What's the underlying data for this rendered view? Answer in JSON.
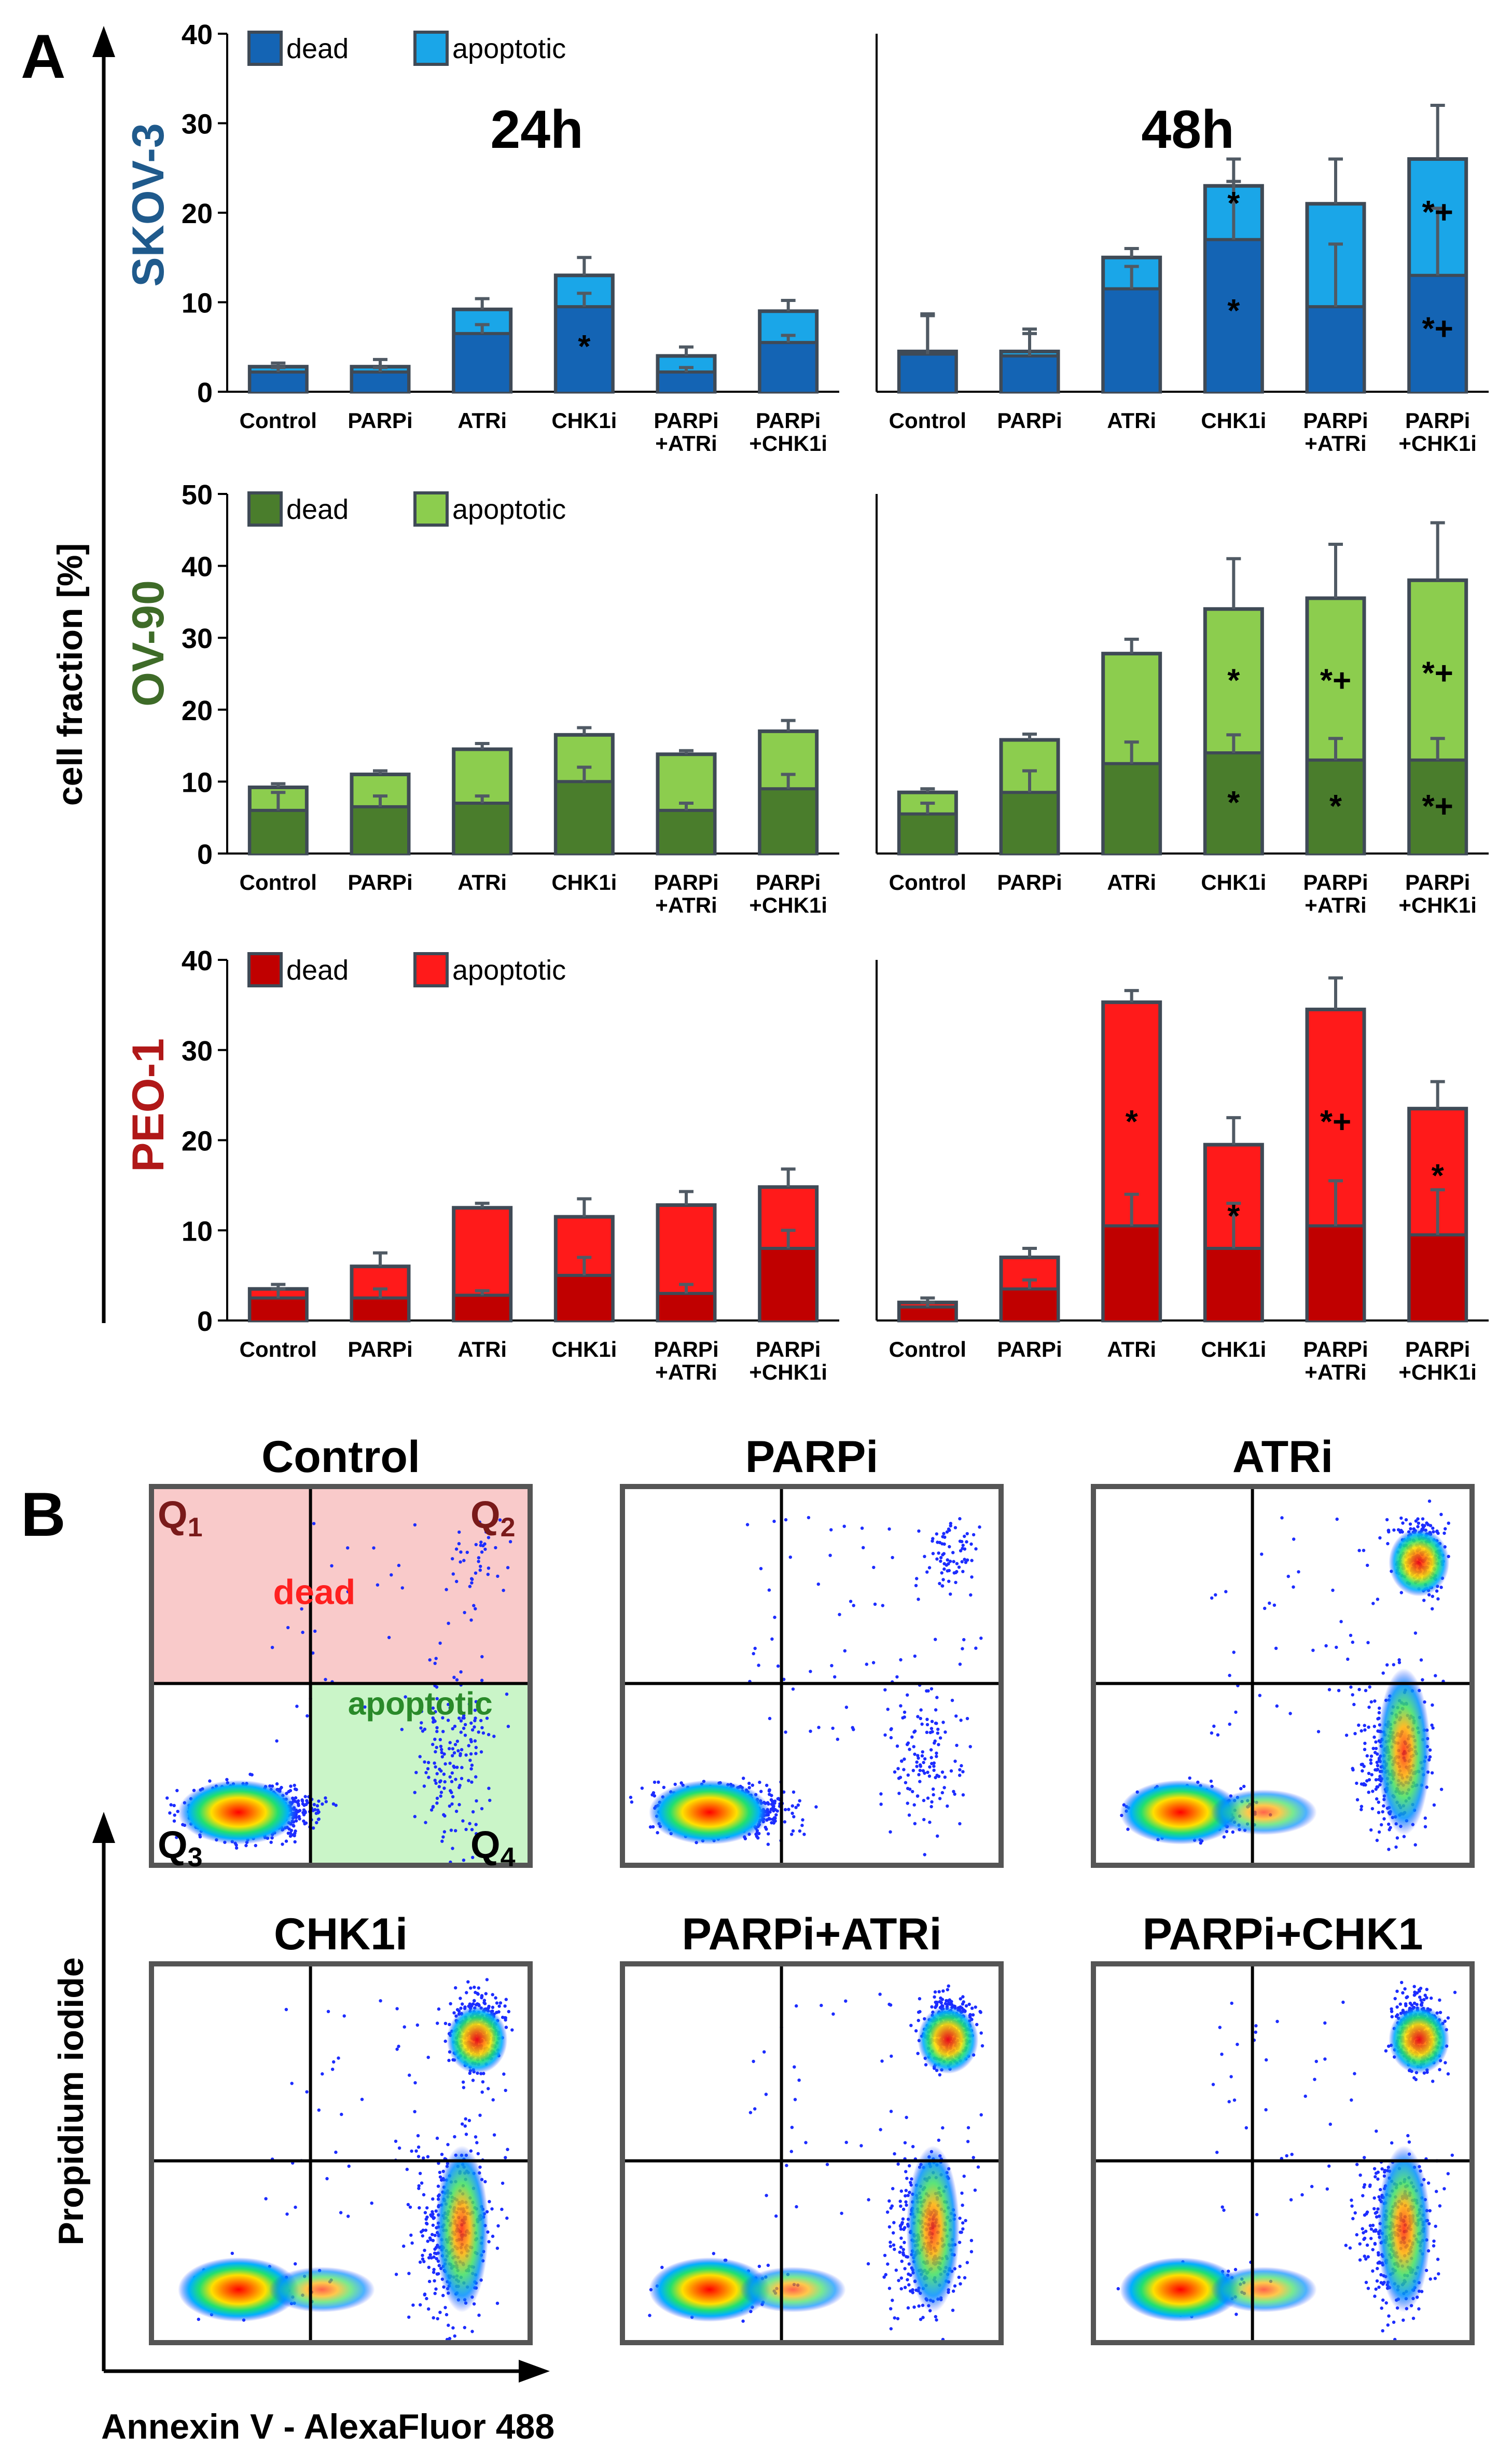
{
  "panel_labels": {
    "a": "A",
    "b": "B"
  },
  "time_labels": [
    "24h",
    "48h"
  ],
  "y_axis_title": "cell fraction [%]",
  "legend": {
    "dead": "dead",
    "apoptotic": "apoptotic"
  },
  "categories": [
    "Control",
    "PARPi",
    "ATRi",
    "CHK1i",
    "PARPi\n+ATRi",
    "PARPi\n+CHK1i"
  ],
  "colors": {
    "skov_dead": "#1464b4",
    "skov_apo": "#1aa6e8",
    "skov_label": "#1f5a8c",
    "ov_dead": "#4a7d2c",
    "ov_apo": "#8ccd4e",
    "ov_label": "#3e6b28",
    "peo_dead": "#c00000",
    "peo_apo": "#ff1a1a",
    "peo_label": "#b01818",
    "bar_edge": "#3f4a56",
    "error": "#505a64"
  },
  "chart_data": [
    {
      "type": "bar",
      "cell_line": "SKOV-3",
      "time": "24h",
      "ylim": [
        0,
        40
      ],
      "yticks": [
        0,
        10,
        20,
        30,
        40
      ],
      "series": [
        {
          "name": "dead",
          "values": [
            2.2,
            2.2,
            6.5,
            9.5,
            2.2,
            5.5
          ],
          "errors": [
            0.5,
            0.5,
            1.0,
            1.5,
            0.5,
            0.8
          ]
        },
        {
          "name": "apoptotic",
          "values": [
            2.8,
            2.8,
            9.2,
            13.0,
            4.0,
            9.0
          ],
          "errors": [
            0.4,
            0.8,
            1.2,
            2.0,
            1.0,
            1.2
          ]
        }
      ],
      "annotations": [
        {
          "category": "CHK1i",
          "y": 5,
          "text": "*"
        }
      ]
    },
    {
      "type": "bar",
      "cell_line": "SKOV-3",
      "time": "48h",
      "ylim": [
        0,
        40
      ],
      "yticks": [
        0,
        10,
        20,
        30,
        40
      ],
      "series": [
        {
          "name": "dead",
          "values": [
            4.2,
            4.0,
            11.5,
            17.0,
            9.5,
            13.0
          ],
          "errors": [
            4.5,
            2.5,
            2.5,
            6.5,
            7.0,
            7.5
          ]
        },
        {
          "name": "apoptotic",
          "values": [
            4.5,
            4.5,
            15.0,
            23.0,
            21.0,
            26.0
          ],
          "errors": [
            4.0,
            2.5,
            1.0,
            3.0,
            5.0,
            6.0
          ]
        }
      ],
      "annotations": [
        {
          "category": "CHK1i",
          "y": 21,
          "text": "*"
        },
        {
          "category": "CHK1i",
          "y": 9,
          "text": "*"
        },
        {
          "category": "PARPi\n+CHK1i",
          "y": 20,
          "text": "*+"
        },
        {
          "category": "PARPi\n+CHK1i",
          "y": 7,
          "text": "*+"
        }
      ]
    },
    {
      "type": "bar",
      "cell_line": "OV-90",
      "time": "24h",
      "ylim": [
        0,
        50
      ],
      "yticks": [
        0,
        10,
        20,
        30,
        40,
        50
      ],
      "series": [
        {
          "name": "dead",
          "values": [
            6.0,
            6.5,
            7.0,
            10.0,
            6.0,
            9.0
          ],
          "errors": [
            2.5,
            1.5,
            1.0,
            2.0,
            1.0,
            2.0
          ]
        },
        {
          "name": "apoptotic",
          "values": [
            9.2,
            11.0,
            14.5,
            16.5,
            13.8,
            17.0
          ],
          "errors": [
            0.5,
            0.5,
            0.8,
            1.0,
            0.5,
            1.5
          ]
        }
      ],
      "annotations": []
    },
    {
      "type": "bar",
      "cell_line": "OV-90",
      "time": "48h",
      "ylim": [
        0,
        50
      ],
      "yticks": [
        0,
        10,
        20,
        30,
        40,
        50
      ],
      "series": [
        {
          "name": "dead",
          "values": [
            5.5,
            8.5,
            12.5,
            14.0,
            13.0,
            13.0
          ],
          "errors": [
            1.5,
            3.0,
            3.0,
            2.5,
            3.0,
            3.0
          ]
        },
        {
          "name": "apoptotic",
          "values": [
            8.5,
            15.8,
            27.8,
            34.0,
            35.5,
            38.0
          ],
          "errors": [
            0.5,
            0.8,
            2.0,
            7.0,
            7.5,
            8.0
          ]
        }
      ],
      "annotations": [
        {
          "category": "CHK1i",
          "y": 24,
          "text": "*"
        },
        {
          "category": "CHK1i",
          "y": 7,
          "text": "*"
        },
        {
          "category": "PARPi\n+ATRi",
          "y": 24,
          "text": "*+"
        },
        {
          "category": "PARPi\n+ATRi",
          "y": 6.5,
          "text": "*"
        },
        {
          "category": "PARPi\n+CHK1i",
          "y": 25,
          "text": "*+"
        },
        {
          "category": "PARPi\n+CHK1i",
          "y": 6.5,
          "text": "*+"
        }
      ]
    },
    {
      "type": "bar",
      "cell_line": "PEO-1",
      "time": "24h",
      "ylim": [
        0,
        40
      ],
      "yticks": [
        0,
        10,
        20,
        30,
        40
      ],
      "series": [
        {
          "name": "dead",
          "values": [
            2.5,
            2.5,
            2.8,
            5.0,
            3.0,
            8.0
          ],
          "errors": [
            1.0,
            1.0,
            0.5,
            2.0,
            1.0,
            2.0
          ]
        },
        {
          "name": "apoptotic",
          "values": [
            3.5,
            6.0,
            12.5,
            11.5,
            12.8,
            14.8
          ],
          "errors": [
            0.5,
            1.5,
            0.5,
            2.0,
            1.5,
            2.0
          ]
        }
      ],
      "annotations": []
    },
    {
      "type": "bar",
      "cell_line": "PEO-1",
      "time": "48h",
      "ylim": [
        0,
        40
      ],
      "yticks": [
        0,
        10,
        20,
        30,
        40
      ],
      "series": [
        {
          "name": "dead",
          "values": [
            1.5,
            3.5,
            10.5,
            8.0,
            10.5,
            9.5
          ],
          "errors": [
            0.5,
            1.0,
            3.5,
            5.0,
            5.0,
            5.0
          ]
        },
        {
          "name": "apoptotic",
          "values": [
            2.0,
            7.0,
            35.3,
            19.5,
            34.5,
            23.5
          ],
          "errors": [
            0.5,
            1.0,
            1.3,
            3.0,
            3.5,
            3.0
          ]
        }
      ],
      "annotations": [
        {
          "category": "ATRi",
          "y": 22,
          "text": "*"
        },
        {
          "category": "CHK1i",
          "y": 11.5,
          "text": "*"
        },
        {
          "category": "PARPi\n+ATRi",
          "y": 22,
          "text": "*+"
        },
        {
          "category": "PARPi\n+CHK1i",
          "y": 16,
          "text": "*"
        }
      ]
    }
  ],
  "flow": {
    "y_axis_title": "Propidium iodide",
    "x_axis_title": "Annexin V - AlexaFluor 488",
    "panels": [
      "Control",
      "PARPi",
      "ATRi",
      "CHK1i",
      "PARPi+ATRi",
      "PARPi+CHK1"
    ],
    "quadrant_letter": "Q",
    "quadrant_subscripts": [
      "1",
      "2",
      "3",
      "4"
    ],
    "region_dead": "dead",
    "region_apoptotic": "apoptotic"
  }
}
